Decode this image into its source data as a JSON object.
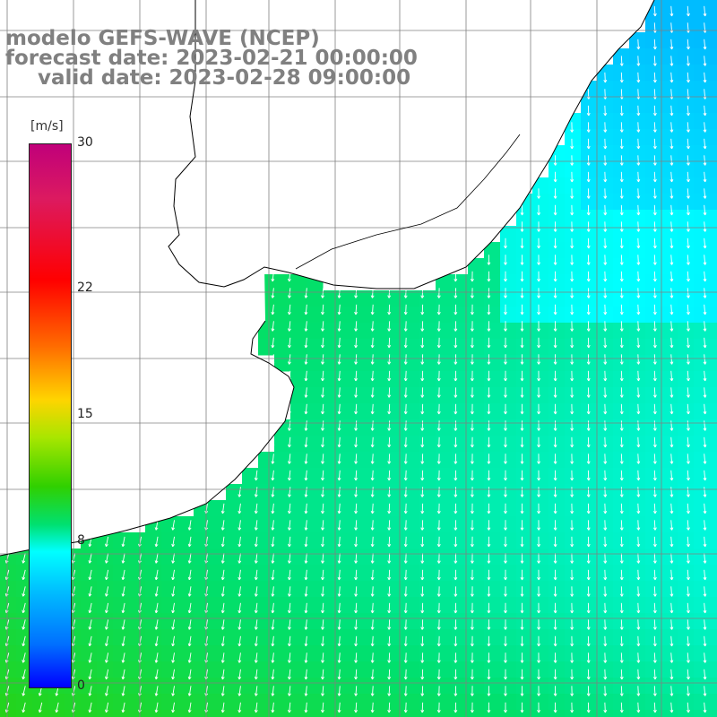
{
  "header": {
    "model_line": "modelo GEFS-WAVE (NCEP)",
    "forecast_line": "forecast date: 2023-02-21 00:00:00",
    "valid_line": "valid date: 2023-02-28 09:00:00"
  },
  "colorbar": {
    "unit": "[m/s]",
    "ticks": [
      {
        "value": 30,
        "label": "30"
      },
      {
        "value": 22,
        "label": "22"
      },
      {
        "value": 15,
        "label": "15"
      },
      {
        "value": 8,
        "label": "8"
      },
      {
        "value": 0,
        "label": "0"
      }
    ],
    "range": [
      0,
      30
    ],
    "colors": [
      "#0000ff",
      "#00b8ff",
      "#00ffff",
      "#00e070",
      "#30d000",
      "#a8e600",
      "#ffd400",
      "#ff6a00",
      "#ff0000",
      "#c0007a"
    ]
  },
  "map": {
    "field": "wind speed with direction arrows",
    "arrow_color": "#ffffff",
    "land_color": "#ffffff",
    "coastline_color": "#000000",
    "grid_color": "#808080",
    "prevailing_direction": "toward south-southeast"
  }
}
